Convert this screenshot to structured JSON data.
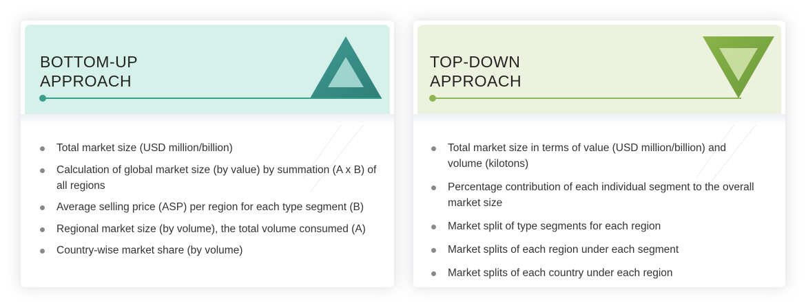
{
  "bottom_up": {
    "title_line1": "BOTTOM-UP",
    "title_line2": "APPROACH",
    "accent_color": "#3a9f8a",
    "header_color": "#d6f0ea",
    "icon": "upward-triangle-icon",
    "items": [
      "Total market size (USD million/billion)",
      "Calculation of global market size (by value) by summation (A x B) of all regions",
      "Average selling price (ASP) per region for each type segment (B)",
      "Regional market size (by volume), the total volume consumed (A)",
      "Country-wise market share (by volume)"
    ]
  },
  "top_down": {
    "title_line1": "TOP-DOWN",
    "title_line2": "APPROACH",
    "accent_color": "#8fb553",
    "header_color": "#ecf2de",
    "icon": "downward-triangle-icon",
    "items": [
      "Total market size in terms of value (USD million/billion) and volume (kilotons)",
      "Percentage contribution of each individual segment to the overall market size",
      "Market split of type segments for each region",
      "Market splits of each region under each segment",
      "Market splits of each country under each region"
    ]
  }
}
